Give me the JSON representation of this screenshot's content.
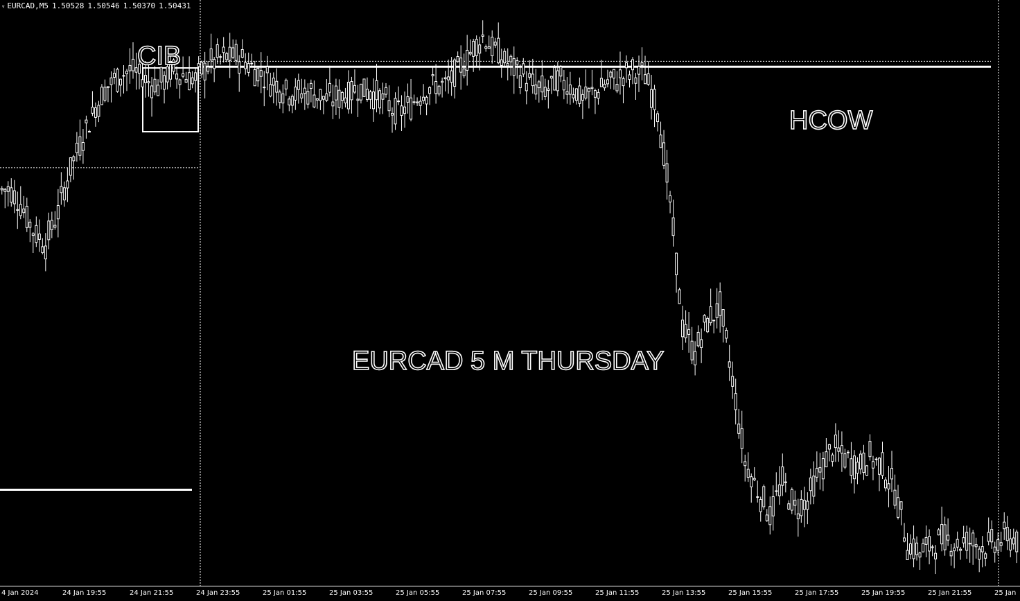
{
  "header": {
    "symbol": "EURCAD,M5",
    "ohlc": [
      "1.50528",
      "1.50546",
      "1.50370",
      "1.50431"
    ]
  },
  "annotations": {
    "cib": "CIB",
    "hcow": "HCOW",
    "title": "EURCAD 5 M  THURSDAY"
  },
  "colors": {
    "background": "#000000",
    "foreground": "#ffffff"
  },
  "chart_data": {
    "type": "line",
    "style": "candlestick outline",
    "grid": false,
    "x_ticks": [
      "4 Jan 2024",
      "24 Jan 19:55",
      "24 Jan 21:55",
      "24 Jan 23:55",
      "25 Jan 01:55",
      "25 Jan 03:55",
      "25 Jan 05:55",
      "25 Jan 07:55",
      "25 Jan 09:55",
      "25 Jan 11:55",
      "25 Jan 13:55",
      "25 Jan 15:55",
      "25 Jan 17:55",
      "25 Jan 19:55",
      "25 Jan 21:55",
      "25 Jan"
    ],
    "series": [
      {
        "values": [
          1.517,
          1.5165,
          1.5155,
          1.515,
          1.5162,
          1.5178,
          1.519,
          1.52,
          1.5208,
          1.5212,
          1.5214,
          1.521,
          1.5208,
          1.5213,
          1.5212,
          1.521,
          1.5216,
          1.5218,
          1.5219,
          1.5217,
          1.5213,
          1.521,
          1.5207,
          1.5205,
          1.5206,
          1.5204,
          1.5203,
          1.5205,
          1.5207,
          1.5206,
          1.5203,
          1.5198,
          1.52,
          1.5205,
          1.5208,
          1.5208,
          1.5213,
          1.522,
          1.5226,
          1.5221,
          1.5216,
          1.5213,
          1.5208,
          1.5206,
          1.521,
          1.5208,
          1.5203,
          1.5206,
          1.5209,
          1.5211,
          1.5213,
          1.5212,
          1.52,
          1.5165,
          1.512,
          1.511,
          1.5122,
          1.5127,
          1.51,
          1.507,
          1.506,
          1.5051,
          1.5063,
          1.5053,
          1.5056,
          1.5067,
          1.5075,
          1.5072,
          1.5069,
          1.5072,
          1.5068,
          1.506,
          1.504,
          1.5037,
          1.504,
          1.5042,
          1.504,
          1.5041,
          1.5039,
          1.504,
          1.5043,
          1.5041
        ]
      }
    ],
    "levels": [
      {
        "name": "",
        "value": 1.5215,
        "style": "solid"
      },
      {
        "name": "",
        "value": 1.5217,
        "style": "dotted"
      },
      {
        "name": "",
        "value": 1.5178,
        "style": "dotted"
      },
      {
        "name": "",
        "value": 1.506,
        "style": "solid"
      }
    ]
  }
}
